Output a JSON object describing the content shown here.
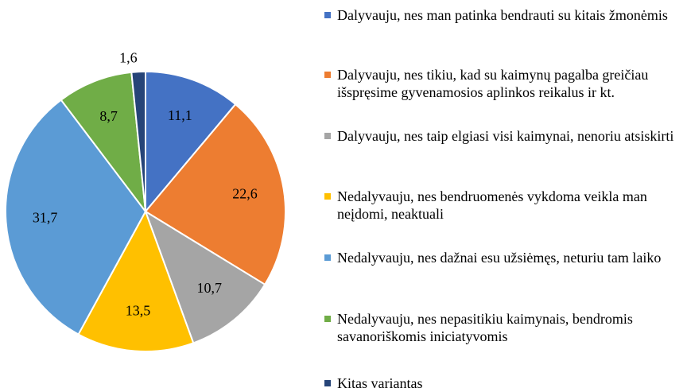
{
  "chart_data": {
    "type": "pie",
    "categories": [
      "Dalyvauju, nes man patinka bendrauti su kitais žmonėmis",
      "Dalyvauju, nes tikiu, kad su kaimynų pagalba greičiau išspręsime gyvenamosios aplinkos reikalus ir kt.",
      "Dalyvauju, nes taip elgiasi visi kaimynai, nenoriu atsiskirti",
      "Nedalyvauju, nes bendruomenės vykdoma veikla man neįdomi, neaktuali",
      "Nedalyvauju, nes dažnai esu užsiėmęs, neturiu tam laiko",
      "Nedalyvauju, nes nepasitikiu kaimynais, bendromis savanoriškomis iniciatyvomis",
      "Kitas variantas"
    ],
    "values": [
      11.1,
      22.6,
      10.7,
      13.5,
      31.7,
      8.7,
      1.6
    ],
    "value_labels": [
      "11,1",
      "22,6",
      "10,7",
      "13,5",
      "31,7",
      "8,7",
      "1,6"
    ],
    "colors": [
      "#4472c4",
      "#ed7d31",
      "#a5a5a5",
      "#ffc000",
      "#5b9bd5",
      "#70ad47",
      "#264478"
    ],
    "legend": "right"
  }
}
